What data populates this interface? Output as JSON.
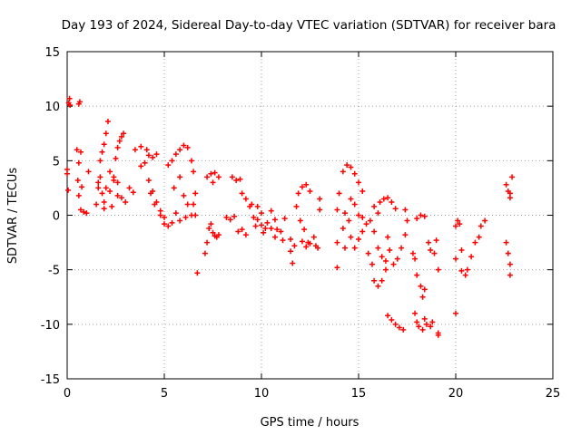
{
  "chart_data": {
    "type": "scatter",
    "title": "Day 193 of 2024, Sidereal Day-to-day VTEC variation (SDTVAR) for receiver bara",
    "xlabel": "GPS time / hours",
    "ylabel": "SDTVAR / TECUs",
    "xlim": [
      0,
      25
    ],
    "ylim": [
      -15,
      15
    ],
    "xticks": [
      0,
      5,
      10,
      15,
      20,
      25
    ],
    "yticks": [
      -15,
      -10,
      -5,
      0,
      5,
      10,
      15
    ],
    "xtick_labels": [
      "0",
      "5",
      "10",
      "15",
      "20",
      "25"
    ],
    "ytick_labels": [
      "-15",
      "-10",
      "-5",
      "0",
      "5",
      "10",
      "15"
    ],
    "grid": true,
    "marker": "+",
    "color": "#ff0000",
    "points": [
      [
        0.0,
        4.2
      ],
      [
        0.0,
        3.8
      ],
      [
        0.05,
        2.3
      ],
      [
        0.08,
        10.3
      ],
      [
        0.12,
        10.7
      ],
      [
        0.15,
        10.1
      ],
      [
        0.6,
        10.2
      ],
      [
        0.65,
        10.4
      ],
      [
        0.5,
        6.0
      ],
      [
        0.6,
        4.8
      ],
      [
        0.7,
        5.8
      ],
      [
        0.55,
        3.2
      ],
      [
        0.6,
        1.8
      ],
      [
        0.75,
        2.6
      ],
      [
        0.7,
        0.5
      ],
      [
        0.85,
        0.3
      ],
      [
        1.0,
        0.2
      ],
      [
        1.1,
        4.0
      ],
      [
        1.5,
        1.0
      ],
      [
        1.6,
        3.0
      ],
      [
        1.7,
        5.0
      ],
      [
        1.8,
        5.8
      ],
      [
        1.9,
        6.5
      ],
      [
        2.0,
        7.5
      ],
      [
        2.1,
        8.6
      ],
      [
        1.6,
        2.5
      ],
      [
        1.7,
        3.5
      ],
      [
        1.8,
        2.0
      ],
      [
        1.9,
        1.2
      ],
      [
        2.0,
        2.5
      ],
      [
        2.2,
        4.0
      ],
      [
        2.4,
        3.2
      ],
      [
        2.6,
        1.8
      ],
      [
        2.2,
        2.2
      ],
      [
        2.4,
        3.5
      ],
      [
        2.5,
        5.2
      ],
      [
        2.6,
        6.2
      ],
      [
        2.7,
        6.8
      ],
      [
        2.8,
        7.2
      ],
      [
        2.9,
        7.5
      ],
      [
        2.6,
        3.0
      ],
      [
        2.8,
        1.6
      ],
      [
        3.0,
        1.2
      ],
      [
        2.3,
        0.8
      ],
      [
        1.9,
        0.6
      ],
      [
        3.2,
        2.5
      ],
      [
        3.4,
        2.1
      ],
      [
        3.5,
        6.0
      ],
      [
        3.8,
        6.3
      ],
      [
        4.1,
        6.0
      ],
      [
        4.2,
        5.5
      ],
      [
        4.4,
        5.3
      ],
      [
        4.6,
        5.6
      ],
      [
        3.8,
        4.5
      ],
      [
        4.0,
        4.8
      ],
      [
        4.2,
        3.2
      ],
      [
        4.4,
        2.2
      ],
      [
        4.6,
        1.2
      ],
      [
        4.8,
        0.4
      ],
      [
        5.0,
        -0.2
      ],
      [
        4.3,
        2.0
      ],
      [
        4.5,
        1.0
      ],
      [
        4.8,
        0.0
      ],
      [
        5.0,
        -0.8
      ],
      [
        5.2,
        -1.0
      ],
      [
        5.4,
        -0.7
      ],
      [
        5.2,
        4.6
      ],
      [
        5.4,
        5.0
      ],
      [
        5.6,
        5.6
      ],
      [
        5.8,
        6.0
      ],
      [
        6.0,
        6.4
      ],
      [
        6.2,
        6.2
      ],
      [
        6.4,
        5.0
      ],
      [
        6.5,
        4.0
      ],
      [
        5.5,
        2.5
      ],
      [
        5.8,
        3.5
      ],
      [
        6.0,
        1.8
      ],
      [
        6.2,
        1.0
      ],
      [
        6.4,
        0.0
      ],
      [
        5.6,
        0.2
      ],
      [
        5.8,
        -0.5
      ],
      [
        6.1,
        -0.2
      ],
      [
        6.6,
        2.0
      ],
      [
        6.5,
        1.0
      ],
      [
        6.6,
        0.0
      ],
      [
        6.7,
        -5.3
      ],
      [
        7.1,
        -3.5
      ],
      [
        7.2,
        -2.5
      ],
      [
        7.3,
        -1.2
      ],
      [
        7.4,
        -0.8
      ],
      [
        7.5,
        -1.6
      ],
      [
        7.6,
        -1.9
      ],
      [
        7.7,
        -2.0
      ],
      [
        7.8,
        -1.8
      ],
      [
        7.2,
        3.5
      ],
      [
        7.4,
        3.8
      ],
      [
        7.6,
        3.9
      ],
      [
        7.8,
        3.5
      ],
      [
        7.5,
        3.0
      ],
      [
        8.2,
        -0.2
      ],
      [
        8.4,
        -0.4
      ],
      [
        8.6,
        -0.1
      ],
      [
        8.8,
        -1.5
      ],
      [
        9.0,
        -1.3
      ],
      [
        9.2,
        -1.8
      ],
      [
        8.5,
        3.5
      ],
      [
        8.7,
        3.2
      ],
      [
        8.9,
        3.3
      ],
      [
        9.0,
        2.0
      ],
      [
        9.2,
        1.5
      ],
      [
        9.4,
        0.8
      ],
      [
        9.5,
        1.0
      ],
      [
        9.6,
        -0.2
      ],
      [
        9.7,
        -1.0
      ],
      [
        9.8,
        -0.4
      ],
      [
        10.0,
        -0.9
      ],
      [
        10.2,
        -1.2
      ],
      [
        9.8,
        0.8
      ],
      [
        10.0,
        0.2
      ],
      [
        10.1,
        -1.6
      ],
      [
        10.3,
        -0.7
      ],
      [
        10.5,
        -1.2
      ],
      [
        10.7,
        -2.0
      ],
      [
        10.5,
        0.4
      ],
      [
        10.7,
        -0.4
      ],
      [
        10.8,
        -1.3
      ],
      [
        11.0,
        -1.5
      ],
      [
        11.1,
        -2.3
      ],
      [
        11.2,
        -0.3
      ],
      [
        11.5,
        -2.2
      ],
      [
        11.5,
        -3.3
      ],
      [
        11.6,
        -4.4
      ],
      [
        11.7,
        -2.8
      ],
      [
        11.8,
        0.8
      ],
      [
        11.9,
        2.0
      ],
      [
        12.1,
        2.6
      ],
      [
        12.3,
        2.8
      ],
      [
        12.5,
        2.2
      ],
      [
        12.0,
        -0.5
      ],
      [
        12.2,
        -1.3
      ],
      [
        12.4,
        -2.5
      ],
      [
        12.1,
        -2.4
      ],
      [
        12.3,
        -2.9
      ],
      [
        12.5,
        -2.6
      ],
      [
        12.7,
        -2.0
      ],
      [
        12.8,
        -2.8
      ],
      [
        12.9,
        -3.0
      ],
      [
        13.0,
        1.5
      ],
      [
        13.0,
        0.5
      ],
      [
        13.9,
        0.5
      ],
      [
        13.9,
        -2.5
      ],
      [
        13.9,
        -4.8
      ],
      [
        14.0,
        2.0
      ],
      [
        14.2,
        -1.2
      ],
      [
        14.3,
        -3.0
      ],
      [
        14.2,
        4.0
      ],
      [
        14.4,
        4.6
      ],
      [
        14.6,
        4.4
      ],
      [
        14.8,
        3.8
      ],
      [
        15.0,
        3.0
      ],
      [
        15.2,
        2.2
      ],
      [
        14.3,
        0.2
      ],
      [
        14.5,
        -0.5
      ],
      [
        14.6,
        -2.0
      ],
      [
        14.8,
        -3.0
      ],
      [
        15.0,
        -2.2
      ],
      [
        15.2,
        -1.5
      ],
      [
        14.6,
        1.5
      ],
      [
        14.8,
        1.0
      ],
      [
        15.0,
        0.0
      ],
      [
        15.2,
        -0.2
      ],
      [
        15.4,
        -0.8
      ],
      [
        15.5,
        -3.5
      ],
      [
        15.7,
        -4.5
      ],
      [
        15.8,
        -6.0
      ],
      [
        16.0,
        -6.5
      ],
      [
        16.2,
        -6.0
      ],
      [
        16.4,
        -5.0
      ],
      [
        15.6,
        -0.5
      ],
      [
        15.8,
        -1.5
      ],
      [
        16.0,
        -3.0
      ],
      [
        16.2,
        -3.8
      ],
      [
        16.4,
        -4.2
      ],
      [
        15.8,
        0.8
      ],
      [
        16.0,
        0.2
      ],
      [
        16.1,
        1.2
      ],
      [
        16.3,
        1.5
      ],
      [
        16.5,
        1.6
      ],
      [
        16.7,
        1.2
      ],
      [
        16.9,
        0.6
      ],
      [
        16.5,
        -2.0
      ],
      [
        16.6,
        -3.2
      ],
      [
        16.8,
        -4.5
      ],
      [
        17.0,
        -4.0
      ],
      [
        17.2,
        -3.0
      ],
      [
        17.4,
        -1.8
      ],
      [
        17.4,
        0.5
      ],
      [
        17.5,
        -0.5
      ],
      [
        16.5,
        -9.2
      ],
      [
        16.7,
        -9.6
      ],
      [
        16.9,
        -10.0
      ],
      [
        17.1,
        -10.3
      ],
      [
        17.3,
        -10.5
      ],
      [
        17.8,
        -3.5
      ],
      [
        17.9,
        -4.0
      ],
      [
        18.0,
        -5.5
      ],
      [
        18.2,
        -6.5
      ],
      [
        18.3,
        -7.5
      ],
      [
        18.4,
        -6.8
      ],
      [
        17.9,
        -9.0
      ],
      [
        18.0,
        -9.8
      ],
      [
        18.1,
        -10.2
      ],
      [
        18.3,
        -10.5
      ],
      [
        18.4,
        -9.5
      ],
      [
        18.5,
        -10.0
      ],
      [
        18.7,
        -10.2
      ],
      [
        18.8,
        -9.8
      ],
      [
        18.0,
        -0.3
      ],
      [
        18.2,
        0.0
      ],
      [
        18.4,
        -0.1
      ],
      [
        18.6,
        -2.5
      ],
      [
        18.7,
        -3.2
      ],
      [
        18.9,
        -3.5
      ],
      [
        19.0,
        -2.3
      ],
      [
        19.1,
        -5.0
      ],
      [
        19.1,
        -10.8
      ],
      [
        19.1,
        -11.0
      ],
      [
        20.0,
        -1.0
      ],
      [
        20.1,
        -0.5
      ],
      [
        20.2,
        -0.8
      ],
      [
        20.3,
        -5.1
      ],
      [
        20.0,
        -4.0
      ],
      [
        20.0,
        -9.0
      ],
      [
        20.3,
        -3.2
      ],
      [
        20.5,
        -5.5
      ],
      [
        20.6,
        -5.0
      ],
      [
        20.8,
        -3.8
      ],
      [
        21.0,
        -2.5
      ],
      [
        21.2,
        -2.0
      ],
      [
        21.3,
        -1.0
      ],
      [
        21.5,
        -0.5
      ],
      [
        22.6,
        2.8
      ],
      [
        22.7,
        2.2
      ],
      [
        22.8,
        1.6
      ],
      [
        22.9,
        3.5
      ],
      [
        22.8,
        2.0
      ],
      [
        22.6,
        -2.5
      ],
      [
        22.7,
        -3.5
      ],
      [
        22.8,
        -4.5
      ],
      [
        22.8,
        -5.5
      ]
    ]
  }
}
